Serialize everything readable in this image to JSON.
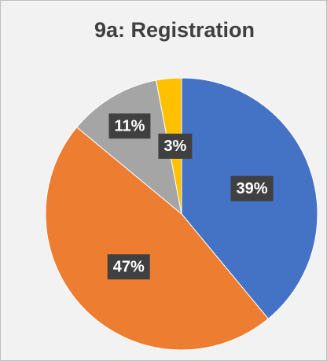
{
  "chart_data": {
    "type": "pie",
    "title": "9a: Registration",
    "values": [
      39,
      47,
      11,
      3
    ],
    "value_labels": [
      "39%",
      "47%",
      "11%",
      "3%"
    ],
    "colors": [
      "#4472c4",
      "#ed7d31",
      "#a5a5a5",
      "#ffc000"
    ]
  }
}
